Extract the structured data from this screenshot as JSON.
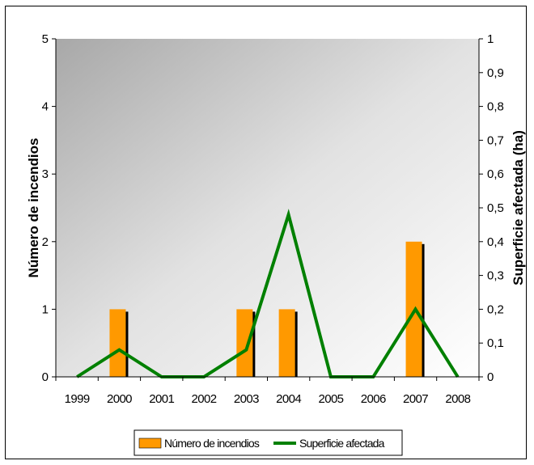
{
  "chart_data": {
    "type": "bar",
    "categories": [
      "1999",
      "2000",
      "2001",
      "2002",
      "2003",
      "2004",
      "2005",
      "2006",
      "2007",
      "2008"
    ],
    "series": [
      {
        "name": "Número de incendios",
        "type": "bar",
        "axis": "left",
        "color": "#FF9900",
        "values": [
          0,
          1,
          0,
          0,
          1,
          1,
          0,
          0,
          2,
          0
        ]
      },
      {
        "name": "Superficie afectada",
        "type": "line",
        "axis": "right",
        "color": "#008000",
        "values": [
          0,
          0.08,
          0,
          0,
          0.08,
          0.48,
          0,
          0,
          0.2,
          0
        ]
      }
    ],
    "ylabel": "Número de incendios",
    "y2label": "Superficie afectada (ha)",
    "ylim": [
      0,
      5
    ],
    "y2lim": [
      0,
      1
    ],
    "yticks": [
      "0",
      "1",
      "2",
      "3",
      "4",
      "5"
    ],
    "y2ticks": [
      "0",
      "0,1",
      "0,2",
      "0,3",
      "0,4",
      "0,5",
      "0,6",
      "0,7",
      "0,8",
      "0,9",
      "1"
    ],
    "legend_position": "bottom",
    "grid": false,
    "plot_background": "gray-gradient"
  }
}
